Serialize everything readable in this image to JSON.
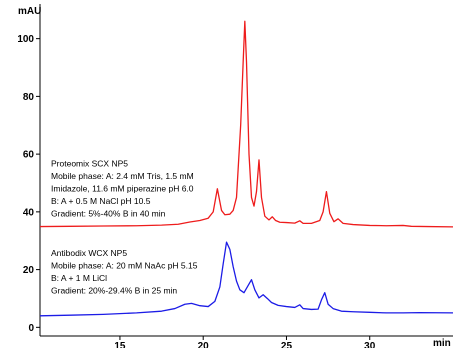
{
  "chart_data": {
    "type": "line",
    "title": "",
    "ylabel": "mAU",
    "xlabel": "min",
    "xlim": [
      10.2,
      35.0
    ],
    "ylim": [
      -3,
      112
    ],
    "x_ticks": [
      15,
      20,
      25,
      30
    ],
    "y_ticks": [
      0,
      20,
      40,
      60,
      80,
      100
    ],
    "grid": false,
    "series": [
      {
        "color": "#ee1c1c",
        "points": [
          [
            10.2,
            34.9
          ],
          [
            12,
            35.0
          ],
          [
            14,
            35.1
          ],
          [
            16,
            35.2
          ],
          [
            17.5,
            35.4
          ],
          [
            18.5,
            35.7
          ],
          [
            19.2,
            36.5
          ],
          [
            19.8,
            37.0
          ],
          [
            20.3,
            37.8
          ],
          [
            20.6,
            40.0
          ],
          [
            20.85,
            48.0
          ],
          [
            21.1,
            40.5
          ],
          [
            21.3,
            39.0
          ],
          [
            21.6,
            39.2
          ],
          [
            21.8,
            40.5
          ],
          [
            22.0,
            45.0
          ],
          [
            22.25,
            70.0
          ],
          [
            22.4,
            92.0
          ],
          [
            22.5,
            106.0
          ],
          [
            22.6,
            92.0
          ],
          [
            22.75,
            60.0
          ],
          [
            22.9,
            45.0
          ],
          [
            23.05,
            42.0
          ],
          [
            23.2,
            47.0
          ],
          [
            23.35,
            58.0
          ],
          [
            23.5,
            45.0
          ],
          [
            23.7,
            38.5
          ],
          [
            23.95,
            37.2
          ],
          [
            24.15,
            38.3
          ],
          [
            24.35,
            37.0
          ],
          [
            24.6,
            36.4
          ],
          [
            25.0,
            36.3
          ],
          [
            25.5,
            36.1
          ],
          [
            25.8,
            36.9
          ],
          [
            26.0,
            36.0
          ],
          [
            26.5,
            36.0
          ],
          [
            27.0,
            37.0
          ],
          [
            27.2,
            40.0
          ],
          [
            27.4,
            47.0
          ],
          [
            27.6,
            39.5
          ],
          [
            27.85,
            36.6
          ],
          [
            28.1,
            37.6
          ],
          [
            28.4,
            36.0
          ],
          [
            29.0,
            35.6
          ],
          [
            30.0,
            35.3
          ],
          [
            31.0,
            35.2
          ],
          [
            32.0,
            35.3
          ],
          [
            32.5,
            35.0
          ],
          [
            33.5,
            34.9
          ],
          [
            35.0,
            34.8
          ]
        ]
      },
      {
        "color": "#1c1ce6",
        "points": [
          [
            10.2,
            4.0
          ],
          [
            12,
            4.2
          ],
          [
            14,
            4.5
          ],
          [
            16,
            5.0
          ],
          [
            17.5,
            5.6
          ],
          [
            18.3,
            6.5
          ],
          [
            18.9,
            8.0
          ],
          [
            19.3,
            8.3
          ],
          [
            19.8,
            7.5
          ],
          [
            20.3,
            7.2
          ],
          [
            20.7,
            9.0
          ],
          [
            21.0,
            14.0
          ],
          [
            21.2,
            22.0
          ],
          [
            21.4,
            29.5
          ],
          [
            21.6,
            27.0
          ],
          [
            21.8,
            21.0
          ],
          [
            22.0,
            16.0
          ],
          [
            22.2,
            13.0
          ],
          [
            22.45,
            12.0
          ],
          [
            22.7,
            14.5
          ],
          [
            22.9,
            16.5
          ],
          [
            23.1,
            13.0
          ],
          [
            23.35,
            10.2
          ],
          [
            23.6,
            11.3
          ],
          [
            23.85,
            10.0
          ],
          [
            24.1,
            8.6
          ],
          [
            24.5,
            7.6
          ],
          [
            25.0,
            7.2
          ],
          [
            25.5,
            6.9
          ],
          [
            25.8,
            7.8
          ],
          [
            26.0,
            6.5
          ],
          [
            26.5,
            6.2
          ],
          [
            26.9,
            6.3
          ],
          [
            27.1,
            9.5
          ],
          [
            27.3,
            12.0
          ],
          [
            27.5,
            8.0
          ],
          [
            27.8,
            6.5
          ],
          [
            28.3,
            5.6
          ],
          [
            29.0,
            5.4
          ],
          [
            30.0,
            5.2
          ],
          [
            31.0,
            5.0
          ],
          [
            32.0,
            5.0
          ],
          [
            33.0,
            5.1
          ],
          [
            35.0,
            5.0
          ]
        ]
      }
    ],
    "annotations": [
      {
        "anchor_y": 56,
        "lines": [
          "Proteomix SCX NP5",
          "Mobile phase: A: 2.4 mM Tris, 1.5 mM",
          "Imidazole, 11.6 mM piperazine pH 6.0",
          "B: A + 0.5 M NaCl pH 10.5",
          "Gradient: 5%-40% B in 40 min"
        ]
      },
      {
        "anchor_y": 25,
        "lines": [
          "Antibodix WCX NP5",
          "Mobile phase: A: 20 mM NaAc pH 5.15",
          "B: A + 1 M LiCl",
          "Gradient: 20%-29.4% B in 25 min"
        ]
      }
    ]
  }
}
